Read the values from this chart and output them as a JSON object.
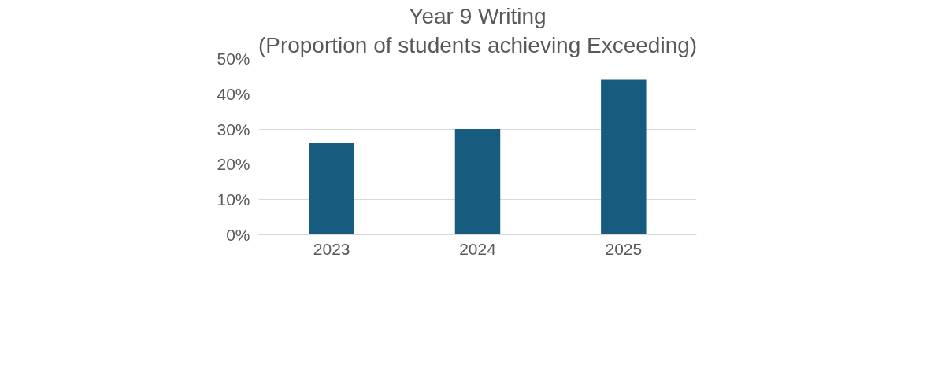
{
  "chart_data": {
    "type": "bar",
    "title": "Year 9 Writing",
    "subtitle": "(Proportion of students achieving Exceeding)",
    "categories": [
      "2023",
      "2024",
      "2025"
    ],
    "values": [
      26,
      30,
      44
    ],
    "color": "#175b7e",
    "ylim": [
      0,
      50
    ],
    "yticks": [
      {
        "value": 0,
        "label": "0%"
      },
      {
        "value": 10,
        "label": "10%"
      },
      {
        "value": 20,
        "label": "20%"
      },
      {
        "value": 30,
        "label": "30%"
      },
      {
        "value": 40,
        "label": "40%"
      },
      {
        "value": 50,
        "label": "50%"
      }
    ],
    "grid": "y"
  }
}
